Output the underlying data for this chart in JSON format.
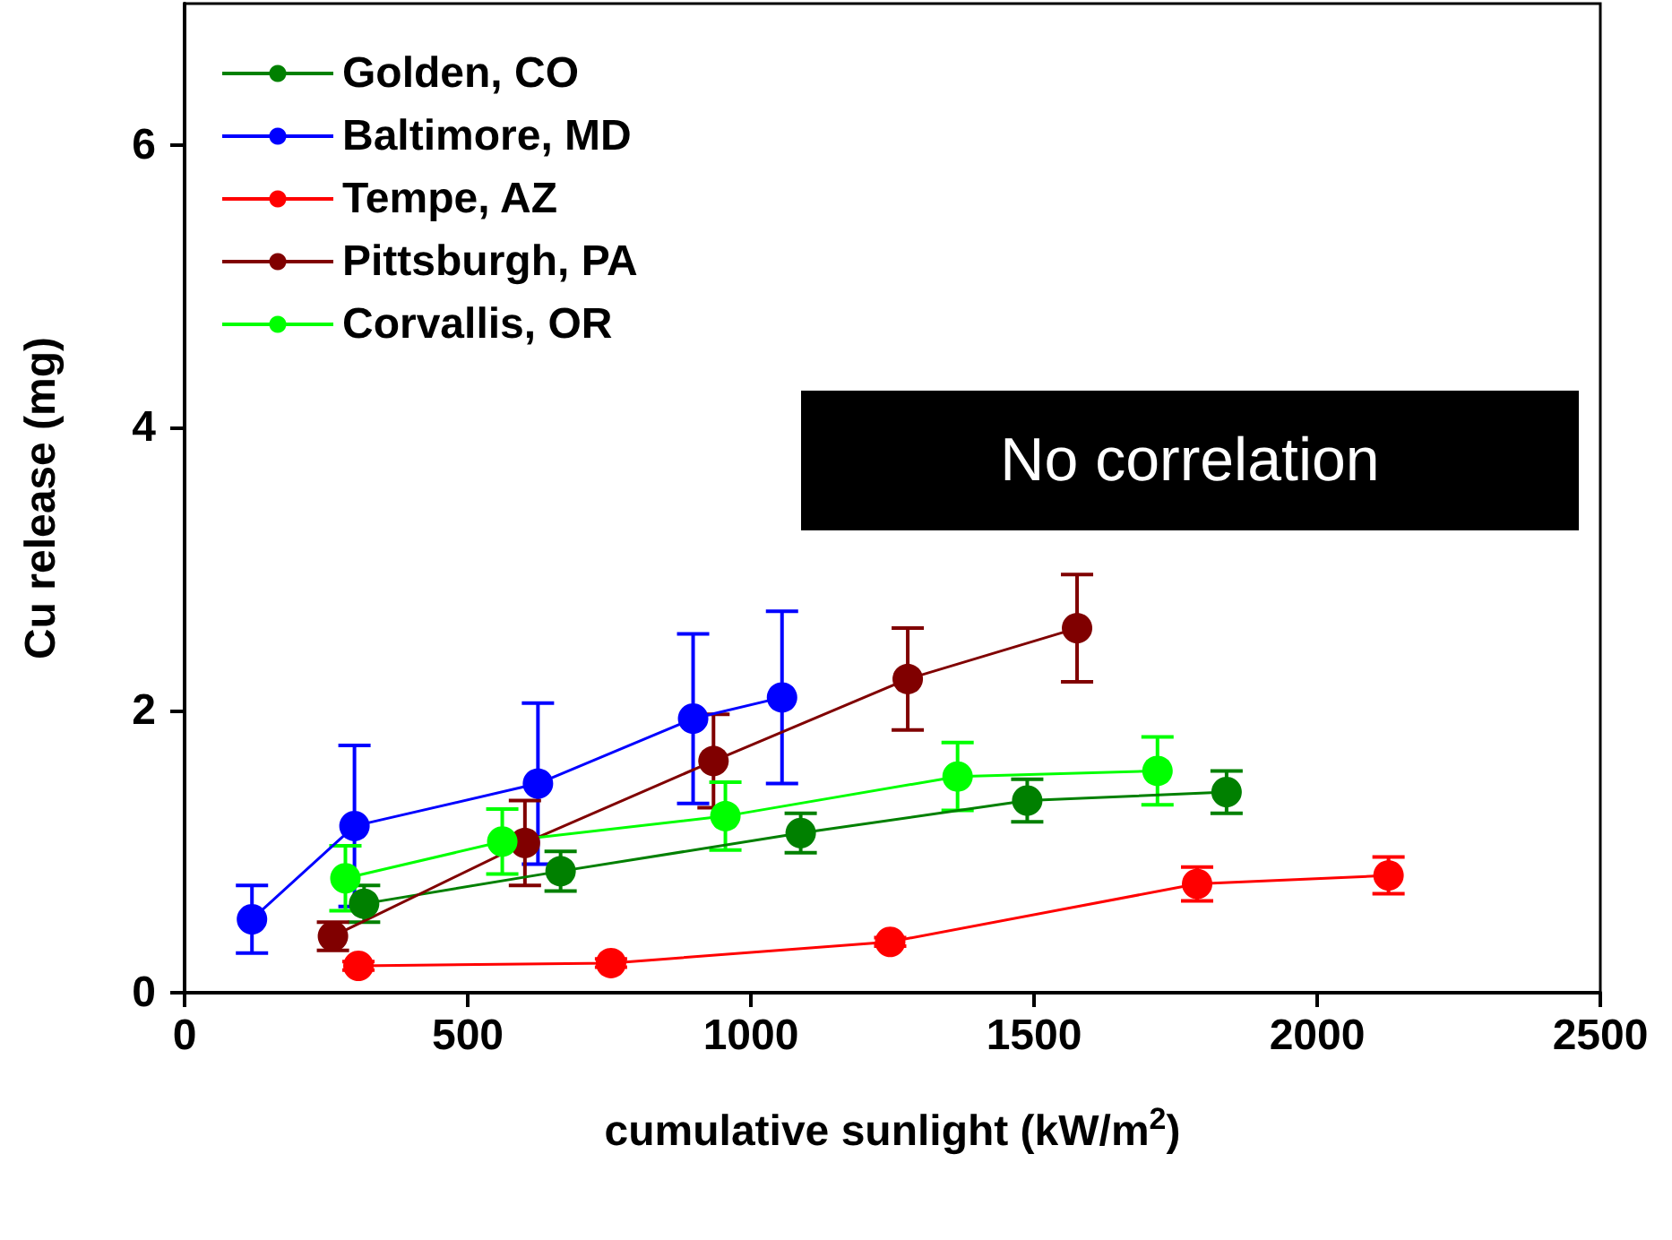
{
  "chart_data": {
    "type": "line",
    "xlabel": "cumulative sunlight (kW/m$^{2}$)",
    "ylabel": "Cu release (mg)",
    "xlim": [
      0,
      2500
    ],
    "xticks": [
      0,
      500,
      1000,
      1500,
      2000,
      2500
    ],
    "ylim": [
      0,
      7
    ],
    "yticks": [
      0,
      2,
      4,
      6
    ],
    "legend": "top left",
    "marker": "circle",
    "grid": false,
    "annotations": [
      "No correlation"
    ],
    "series": [
      {
        "name": "Golden, CO",
        "color": "#008000",
        "x": [
          317,
          664,
          1088,
          1488,
          1840
        ],
        "values": [
          0.63,
          0.86,
          1.13,
          1.36,
          1.42
        ],
        "errors": [
          0.13,
          0.14,
          0.14,
          0.15,
          0.15
        ]
      },
      {
        "name": "Baltimore, MD",
        "color": "#0000ff",
        "x": [
          119,
          300,
          624,
          898,
          1055
        ],
        "values": [
          0.52,
          1.18,
          1.48,
          1.94,
          2.09
        ],
        "errors": [
          0.24,
          0.57,
          0.57,
          0.6,
          0.61
        ]
      },
      {
        "name": "Tempe, AZ",
        "color": "#ff0000",
        "x": [
          307,
          753,
          1246,
          1788,
          2126
        ],
        "values": [
          0.19,
          0.21,
          0.36,
          0.77,
          0.83
        ],
        "errors": [
          0.03,
          0.03,
          0.03,
          0.12,
          0.13
        ]
      },
      {
        "name": "Pittsburgh, PA",
        "color": "#800000",
        "x": [
          262,
          601,
          934,
          1277,
          1576
        ],
        "values": [
          0.4,
          1.06,
          1.64,
          2.22,
          2.58
        ],
        "errors": [
          0.1,
          0.3,
          0.33,
          0.36,
          0.38
        ]
      },
      {
        "name": "Corvallis, OR",
        "color": "#00ff00",
        "x": [
          284,
          561,
          955,
          1365,
          1718
        ],
        "values": [
          0.81,
          1.07,
          1.25,
          1.53,
          1.57
        ],
        "errors": [
          0.23,
          0.23,
          0.24,
          0.24,
          0.24
        ]
      }
    ]
  }
}
